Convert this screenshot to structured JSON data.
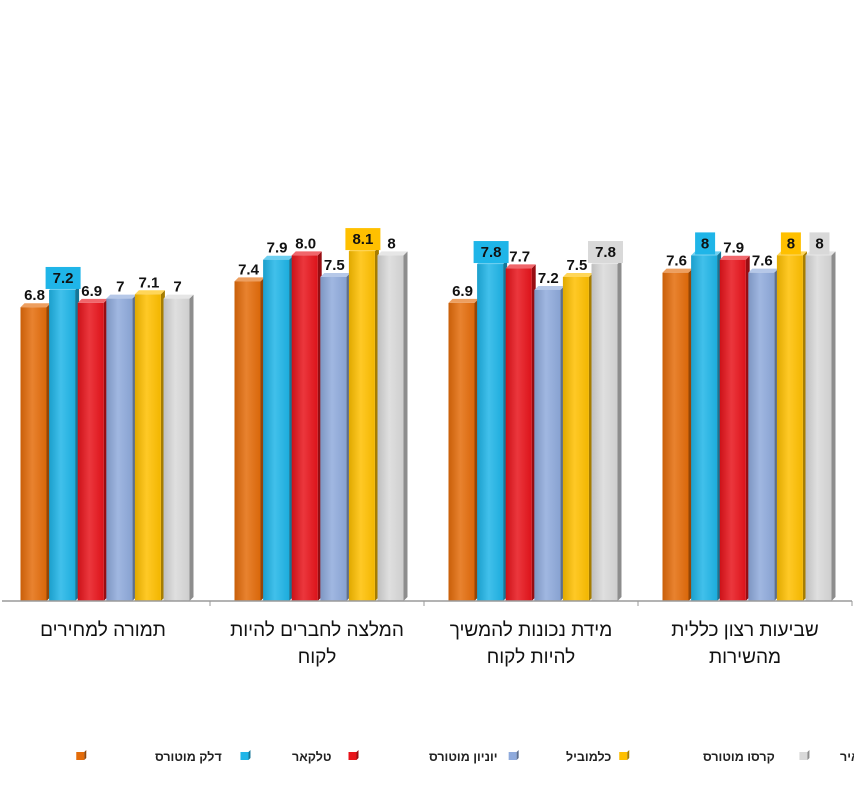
{
  "chart_data": {
    "type": "bar",
    "title": "",
    "xlabel": "",
    "ylabel": "",
    "ylim": [
      0,
      8.1
    ],
    "grid": false,
    "legend_position": "bottom",
    "categories": [
      {
        "lines": [
          "שביעות רצון כללית",
          "מהשירות"
        ]
      },
      {
        "lines": [
          "מידת נכונות להמשיך",
          "להיות לקוח"
        ]
      },
      {
        "lines": [
          "המלצה לחברים להיות",
          "לקוח"
        ]
      },
      {
        "lines": [
          "תמורה למחירים"
        ]
      }
    ],
    "series": [
      {
        "name": "דלק מוטורס",
        "color": "#E46C0A",
        "values": [
          7.6,
          6.9,
          7.4,
          6.8
        ],
        "labels": [
          "7.6",
          "6.9",
          "7.4",
          "6.8"
        ],
        "highlight": [
          false,
          false,
          false,
          false
        ]
      },
      {
        "name": "טלקאר",
        "color": "#1FB5E8",
        "values": [
          8,
          7.8,
          7.9,
          7.2
        ],
        "labels": [
          "8",
          "7.8",
          "7.9",
          "7.2"
        ],
        "highlight": [
          true,
          true,
          false,
          true
        ]
      },
      {
        "name": "יוניון מוטורס",
        "color": "#E8141B",
        "values": [
          7.9,
          7.7,
          8.0,
          6.9
        ],
        "labels": [
          "7.9",
          "7.7",
          "8.0",
          "6.9"
        ],
        "highlight": [
          false,
          false,
          false,
          false
        ]
      },
      {
        "name": "כלמוביל",
        "color": "#8FAADC",
        "values": [
          7.6,
          7.2,
          7.5,
          7
        ],
        "labels": [
          "7.6",
          "7.2",
          "7.5",
          "7"
        ],
        "highlight": [
          false,
          false,
          false,
          false
        ]
      },
      {
        "name": "קרסו מוטורס",
        "color": "#FFC000",
        "values": [
          8,
          7.5,
          8.1,
          7.1
        ],
        "labels": [
          "8",
          "7.5",
          "8.1",
          "7.1"
        ],
        "highlight": [
          true,
          false,
          true,
          false
        ]
      },
      {
        "name": "מאיר",
        "color": "#D9D9D9",
        "values": [
          8,
          7.8,
          8,
          7
        ],
        "labels": [
          "8",
          "7.8",
          "8",
          "7"
        ],
        "highlight": [
          true,
          true,
          false,
          false
        ]
      }
    ]
  }
}
